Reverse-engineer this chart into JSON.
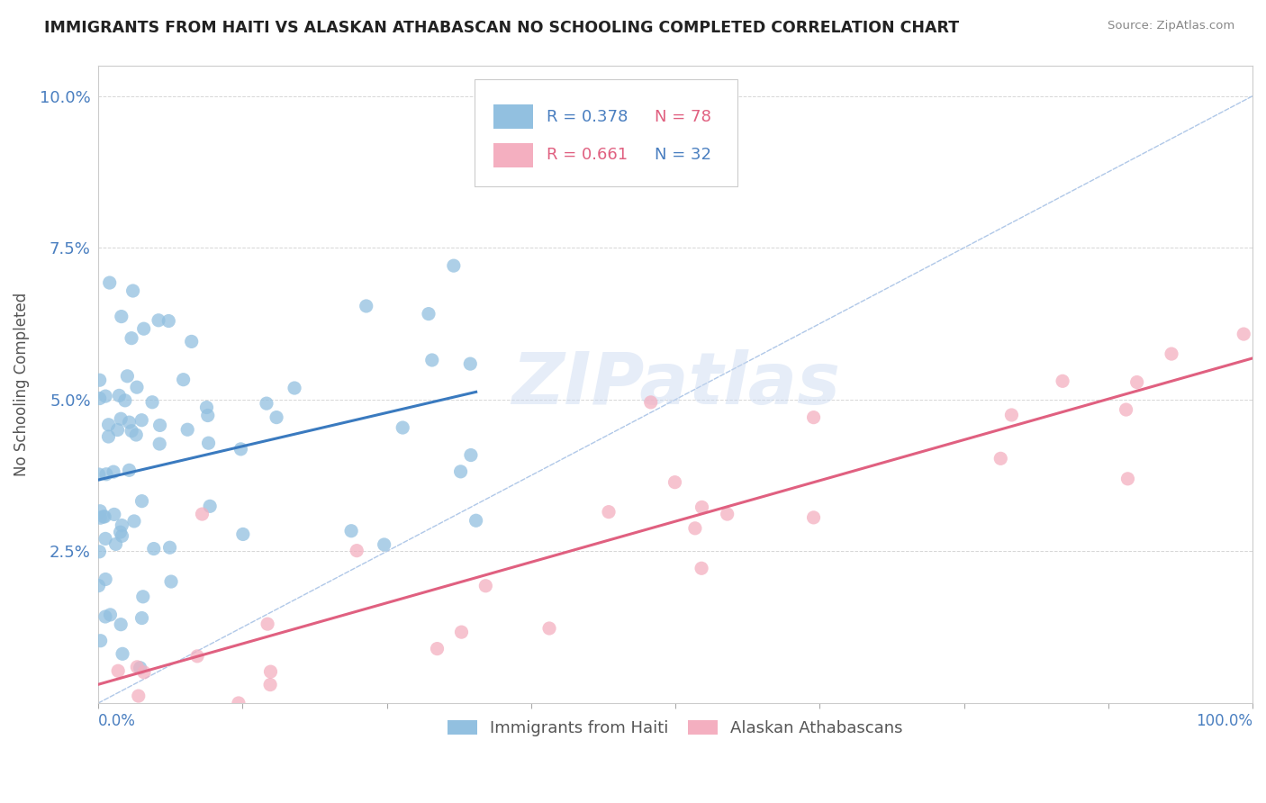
{
  "title": "IMMIGRANTS FROM HAITI VS ALASKAN ATHABASCAN NO SCHOOLING COMPLETED CORRELATION CHART",
  "source": "Source: ZipAtlas.com",
  "ylabel": "No Schooling Completed",
  "xlim": [
    0.0,
    1.0
  ],
  "ylim": [
    0.0,
    0.105
  ],
  "watermark": "ZIPatlas",
  "legend_r1": "R = 0.378",
  "legend_n1": "N = 78",
  "legend_r2": "R = 0.661",
  "legend_n2": "N = 32",
  "blue_scatter_color": "#92c0e0",
  "pink_scatter_color": "#f4afc0",
  "blue_line_color": "#3a7abf",
  "pink_line_color": "#e06080",
  "text_color_blue": "#4a7fc0",
  "ref_line_color": "#b0c8e8",
  "grid_color": "#cccccc",
  "background_color": "#ffffff",
  "title_color": "#222222",
  "source_color": "#888888",
  "ylabel_color": "#555555",
  "haiti_seed": 101,
  "alaska_seed": 202
}
